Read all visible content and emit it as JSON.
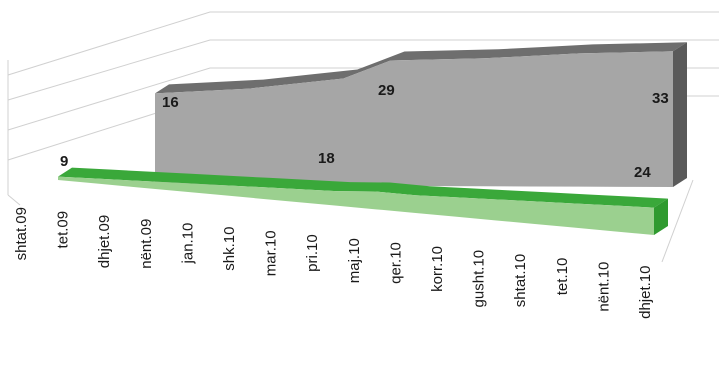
{
  "chart_data": {
    "type": "area",
    "subtype": "3d-area",
    "categories": [
      "shtat.09",
      "tet.09",
      "dhjet.09",
      "nënt.09",
      "jan.10",
      "shk.10",
      "mar.10",
      "pri.10",
      "maj.10",
      "qer.10",
      "korr.10",
      "gusht.10",
      "shtat.10",
      "tet.10",
      "nënt.10",
      "dhjet.10"
    ],
    "series": [
      {
        "values": [
          null,
          null,
          null,
          null,
          16,
          17,
          18,
          20,
          22,
          29,
          29.5,
          30,
          31,
          32,
          32.5,
          33
        ],
        "labels": [
          null,
          null,
          null,
          null,
          "16",
          null,
          null,
          null,
          null,
          "29",
          null,
          null,
          null,
          null,
          null,
          "33"
        ],
        "color": "#a6a6a6",
        "top_color": "#6e6e6e"
      },
      {
        "values": [
          9,
          10,
          11,
          12,
          13,
          14,
          15,
          16,
          18,
          18,
          19,
          20,
          21,
          22,
          23,
          24
        ],
        "labels": [
          "9",
          null,
          null,
          null,
          null,
          null,
          null,
          null,
          "18",
          null,
          null,
          null,
          null,
          null,
          null,
          "24"
        ],
        "color": "#9bd08f",
        "top_color": "#3aa83a"
      }
    ],
    "grid": true,
    "legend": "none"
  }
}
